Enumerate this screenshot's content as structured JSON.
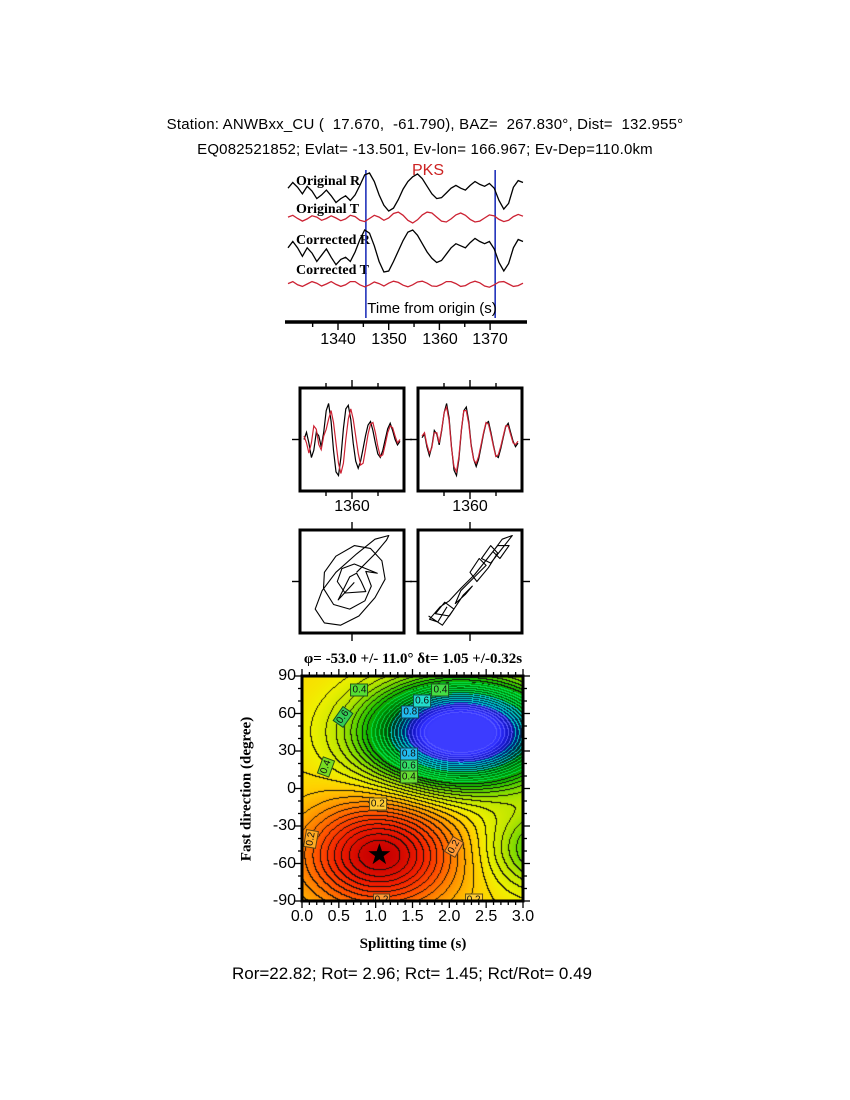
{
  "header": {
    "line1": "Station: ANWBxx_CU (  17.670,  -61.790), BAZ=  267.830°, Dist=  132.955°",
    "line2": "EQ082521852; Evlat= -13.501, Ev-lon= 166.967; Ev-Dep=110.0km"
  },
  "footer": {
    "result_line": "Ror=22.82; Rot= 2.96; Rct= 1.45; Rct/Rot= 0.49"
  },
  "colors": {
    "trace_black": "#000000",
    "trace_red": "#cc2233",
    "window_marker_blue": "#2233bb",
    "phase_red": "#cc2222",
    "contour_low": "#dd0000",
    "contour_mid": "#f0f000",
    "contour_high": "#3333ff"
  },
  "chart_data": [
    {
      "id": "waveforms",
      "type": "line",
      "phase": "PKS",
      "xlabel": "Time from origin (s)",
      "xticks": [
        "1340",
        "1350",
        "1360",
        "1370"
      ],
      "xlim": [
        1334,
        1372.5
      ],
      "analysis_window_s": [
        1345.5,
        1371.0
      ],
      "traces": [
        {
          "label": "Original R",
          "color": "#000000",
          "values": [
            0.2,
            0.5,
            0.25,
            -0.1,
            0.3,
            0.05,
            -0.35,
            -0.15,
            0.1,
            -0.2,
            -0.55,
            -0.35,
            -0.2,
            -0.45,
            -0.15,
            0.35,
            0.9,
            1.0,
            0.55,
            -0.15,
            -0.7,
            -1.0,
            -0.85,
            -0.4,
            0.15,
            0.55,
            0.8,
            0.95,
            0.7,
            0.3,
            -0.1,
            -0.35,
            -0.3,
            -0.05,
            0.2,
            0.35,
            0.2,
            0.1,
            0.35,
            0.55,
            0.4,
            0.3,
            0.45,
            0.2,
            -0.45,
            -0.9,
            -0.6,
            0.25,
            0.6,
            0.5
          ]
        },
        {
          "label": "Original T",
          "color": "#cc2233",
          "values": [
            0.1,
            0.3,
            -0.05,
            -0.35,
            -0.1,
            0.25,
            0.1,
            -0.25,
            -0.05,
            0.25,
            0.0,
            -0.3,
            -0.1,
            0.3,
            0.15,
            -0.25,
            -0.4,
            -0.05,
            0.3,
            0.1,
            -0.25,
            0.0,
            0.5,
            0.65,
            0.3,
            -0.25,
            -0.55,
            -0.2,
            0.35,
            0.65,
            0.55,
            0.1,
            -0.35,
            -0.45,
            -0.1,
            0.35,
            0.55,
            0.3,
            -0.15,
            -0.45,
            -0.35,
            0.0,
            0.35,
            0.25,
            -0.15,
            -0.4,
            -0.25,
            0.15,
            0.4,
            0.2
          ]
        },
        {
          "label": "Corrected R",
          "color": "#000000",
          "values": [
            0.15,
            0.45,
            0.15,
            -0.25,
            0.15,
            -0.1,
            -0.5,
            -0.2,
            0.1,
            -0.3,
            -0.65,
            -0.4,
            -0.3,
            -0.5,
            -0.05,
            0.55,
            1.0,
            0.85,
            0.25,
            -0.5,
            -1.0,
            -0.95,
            -0.5,
            0.0,
            0.5,
            0.9,
            1.0,
            0.75,
            0.35,
            -0.05,
            -0.35,
            -0.55,
            -0.45,
            -0.15,
            0.15,
            0.35,
            0.25,
            0.15,
            0.4,
            0.6,
            0.45,
            0.35,
            0.45,
            0.1,
            -0.55,
            -0.95,
            -0.6,
            0.15,
            0.55,
            0.45
          ]
        },
        {
          "label": "Corrected T",
          "color": "#cc2233",
          "values": [
            0.05,
            0.3,
            -0.1,
            -0.3,
            0.0,
            0.3,
            0.1,
            -0.25,
            0.0,
            0.3,
            -0.05,
            -0.3,
            -0.1,
            0.3,
            0.3,
            -0.1,
            -0.35,
            -0.1,
            0.25,
            0.05,
            -0.25,
            0.1,
            0.35,
            0.2,
            -0.15,
            -0.35,
            -0.1,
            0.25,
            0.35,
            0.1,
            -0.25,
            -0.3,
            -0.05,
            0.3,
            0.3,
            0.05,
            -0.3,
            -0.2,
            0.15,
            0.35,
            0.15,
            -0.25,
            -0.4,
            -0.1,
            0.25,
            0.3,
            0.0,
            -0.3,
            -0.2,
            0.1
          ]
        }
      ]
    },
    {
      "id": "window-panels",
      "type": "line",
      "tick_label": "1360",
      "panels": [
        {
          "name": "original-window",
          "black": [
            0.0,
            0.2,
            -0.1,
            -0.5,
            -0.3,
            0.2,
            0.1,
            -0.2,
            0.2,
            0.8,
            1.0,
            0.5,
            -0.3,
            -0.9,
            -1.0,
            -0.5,
            0.3,
            0.85,
            0.95,
            0.55,
            -0.1,
            -0.6,
            -0.8,
            -0.6,
            -0.25,
            0.1,
            0.4,
            0.5,
            0.25,
            -0.1,
            -0.4,
            -0.5,
            -0.3,
            0.0,
            0.3,
            0.45,
            0.25,
            0.0,
            -0.15,
            -0.05
          ],
          "red": [
            0.1,
            -0.1,
            -0.4,
            -0.1,
            0.4,
            0.3,
            -0.15,
            -0.3,
            0.1,
            0.3,
            0.6,
            0.85,
            0.5,
            -0.1,
            -0.7,
            -1.0,
            -0.7,
            0.0,
            0.6,
            0.9,
            0.6,
            0.1,
            -0.4,
            -0.75,
            -0.7,
            -0.3,
            0.15,
            0.45,
            0.5,
            0.2,
            -0.2,
            -0.5,
            -0.45,
            -0.15,
            0.2,
            0.4,
            0.35,
            0.1,
            -0.1,
            0.0
          ]
        },
        {
          "name": "corrected-window",
          "black": [
            0.05,
            0.15,
            -0.2,
            -0.45,
            -0.2,
            0.25,
            0.15,
            -0.15,
            0.25,
            0.75,
            1.0,
            0.6,
            -0.2,
            -0.85,
            -1.0,
            -0.55,
            0.25,
            0.8,
            0.9,
            0.5,
            -0.15,
            -0.55,
            -0.75,
            -0.55,
            -0.2,
            0.15,
            0.45,
            0.5,
            0.2,
            -0.15,
            -0.45,
            -0.5,
            -0.25,
            0.05,
            0.35,
            0.45,
            0.2,
            -0.05,
            -0.2,
            -0.1
          ],
          "red": [
            0.1,
            0.2,
            -0.15,
            -0.4,
            -0.25,
            0.2,
            0.2,
            -0.1,
            0.3,
            0.8,
            0.95,
            0.55,
            -0.25,
            -0.8,
            -0.95,
            -0.5,
            0.3,
            0.85,
            0.85,
            0.45,
            -0.2,
            -0.6,
            -0.7,
            -0.5,
            -0.15,
            0.2,
            0.5,
            0.45,
            0.15,
            -0.2,
            -0.5,
            -0.45,
            -0.2,
            0.1,
            0.4,
            0.4,
            0.15,
            -0.1,
            -0.15,
            -0.05
          ]
        }
      ]
    },
    {
      "id": "particle-motion",
      "type": "line",
      "panels": [
        {
          "name": "original-particle-motion",
          "points": [
            [
              0.1,
              0.2
            ],
            [
              0.5,
              0.6
            ],
            [
              0.75,
              0.9
            ],
            [
              0.8,
              1.0
            ],
            [
              0.5,
              0.92
            ],
            [
              0.1,
              0.6
            ],
            [
              -0.35,
              0.2
            ],
            [
              -0.65,
              -0.2
            ],
            [
              -0.8,
              -0.6
            ],
            [
              -0.6,
              -0.9
            ],
            [
              -0.25,
              -0.95
            ],
            [
              0.15,
              -0.75
            ],
            [
              0.5,
              -0.35
            ],
            [
              0.72,
              0.05
            ],
            [
              0.65,
              0.45
            ],
            [
              0.4,
              0.72
            ],
            [
              0.05,
              0.78
            ],
            [
              -0.35,
              0.55
            ],
            [
              -0.6,
              0.2
            ],
            [
              -0.62,
              -0.15
            ],
            [
              -0.4,
              -0.5
            ],
            [
              -0.05,
              -0.6
            ],
            [
              0.28,
              -0.42
            ],
            [
              0.42,
              -0.1
            ],
            [
              0.3,
              0.22
            ],
            [
              0.55,
              0.18
            ],
            [
              0.05,
              0.38
            ],
            [
              -0.22,
              0.28
            ],
            [
              -0.32,
              0.0
            ],
            [
              -0.15,
              -0.25
            ],
            [
              0.3,
              -0.22
            ],
            [
              0.2,
              0.0
            ],
            [
              0.1,
              0.18
            ],
            [
              -0.05,
              0.1
            ],
            [
              -0.3,
              -0.4
            ],
            [
              0.05,
              -0.02
            ]
          ]
        },
        {
          "name": "corrected-particle-motion",
          "points": [
            [
              -0.9,
              -0.75
            ],
            [
              -0.6,
              -0.95
            ],
            [
              -0.35,
              -0.6
            ],
            [
              -0.55,
              -0.45
            ],
            [
              -0.75,
              -0.7
            ],
            [
              -0.45,
              -0.75
            ],
            [
              -0.15,
              -0.3
            ],
            [
              0.05,
              -0.1
            ],
            [
              -0.1,
              -0.28
            ],
            [
              -0.32,
              -0.48
            ],
            [
              -0.2,
              -0.2
            ],
            [
              0.1,
              0.1
            ],
            [
              0.35,
              0.35
            ],
            [
              0.2,
              0.5
            ],
            [
              0.0,
              0.2
            ],
            [
              0.15,
              0.0
            ],
            [
              0.4,
              0.3
            ],
            [
              0.6,
              0.62
            ],
            [
              0.45,
              0.78
            ],
            [
              0.25,
              0.5
            ],
            [
              0.45,
              0.4
            ],
            [
              0.7,
              0.72
            ],
            [
              0.92,
              1.0
            ],
            [
              0.7,
              0.92
            ],
            [
              0.5,
              0.65
            ],
            [
              0.65,
              0.5
            ],
            [
              0.85,
              0.78
            ],
            [
              0.6,
              0.78
            ],
            [
              0.3,
              0.4
            ],
            [
              0.1,
              0.15
            ],
            [
              -0.2,
              -0.15
            ],
            [
              -0.45,
              -0.42
            ],
            [
              -0.65,
              -0.55
            ],
            [
              -0.88,
              -0.82
            ],
            [
              -0.7,
              -0.88
            ],
            [
              -0.5,
              -0.55
            ]
          ]
        }
      ]
    },
    {
      "id": "splitting-contour",
      "type": "heatmap",
      "title": "φ= -53.0 +/- 11.0° δt= 1.05 +/-0.32s",
      "xlabel": "Splitting time (s)",
      "ylabel": "Fast direction (degree)",
      "xlim": [
        0,
        3
      ],
      "ylim": [
        -90,
        90
      ],
      "xticks": [
        "0.0",
        "0.5",
        "1.0",
        "1.5",
        "2.0",
        "2.5",
        "3.0"
      ],
      "yticks": [
        "90",
        "60",
        "30",
        "0",
        "-30",
        "-60",
        "-90"
      ],
      "best_fit": {
        "fast_direction_deg": -53.0,
        "fast_direction_err_deg": 11.0,
        "delay_s": 1.05,
        "delay_err_s": 0.32
      },
      "minimum_marker": {
        "x": 1.05,
        "y": -53,
        "symbol": "star",
        "color": "#000000"
      },
      "maximum_region": {
        "x": 2.15,
        "y": 45
      },
      "contour_labels": [
        {
          "x": 0.78,
          "y": 79,
          "text": "0.4",
          "bg": "#55dd33",
          "rot": 0
        },
        {
          "x": 0.55,
          "y": 57,
          "text": "0.6",
          "bg": "#33cc55",
          "rot": -55
        },
        {
          "x": 0.32,
          "y": 17,
          "text": "0.4",
          "bg": "#77dd22",
          "rot": -70
        },
        {
          "x": 1.47,
          "y": 61,
          "text": "0.8",
          "bg": "#22bbee",
          "rot": 0
        },
        {
          "x": 1.63,
          "y": 70,
          "text": "0.6",
          "bg": "#22ddcc",
          "rot": 0
        },
        {
          "x": 1.88,
          "y": 79,
          "text": "0.4",
          "bg": "#44dd44",
          "rot": 0
        },
        {
          "x": 1.45,
          "y": 28,
          "text": "0.8",
          "bg": "#22bbee",
          "rot": 0
        },
        {
          "x": 1.45,
          "y": 18,
          "text": "0.6",
          "bg": "#33dd66",
          "rot": 0
        },
        {
          "x": 1.45,
          "y": 9,
          "text": "0.4",
          "bg": "#66dd33",
          "rot": 0
        },
        {
          "x": 1.03,
          "y": -12,
          "text": "0.2",
          "bg": "#ffcc33",
          "rot": 0
        },
        {
          "x": 0.12,
          "y": -40,
          "text": "0.2",
          "bg": "#ffaa22",
          "rot": -80
        },
        {
          "x": 2.07,
          "y": -47,
          "text": "0.2",
          "bg": "#ff9933",
          "rot": -60
        },
        {
          "x": 1.08,
          "y": -89,
          "text": "0.2",
          "bg": "#ff9933",
          "rot": 0
        },
        {
          "x": 2.33,
          "y": -89,
          "text": "0.2",
          "bg": "#ffcc33",
          "rot": 0
        }
      ]
    }
  ]
}
